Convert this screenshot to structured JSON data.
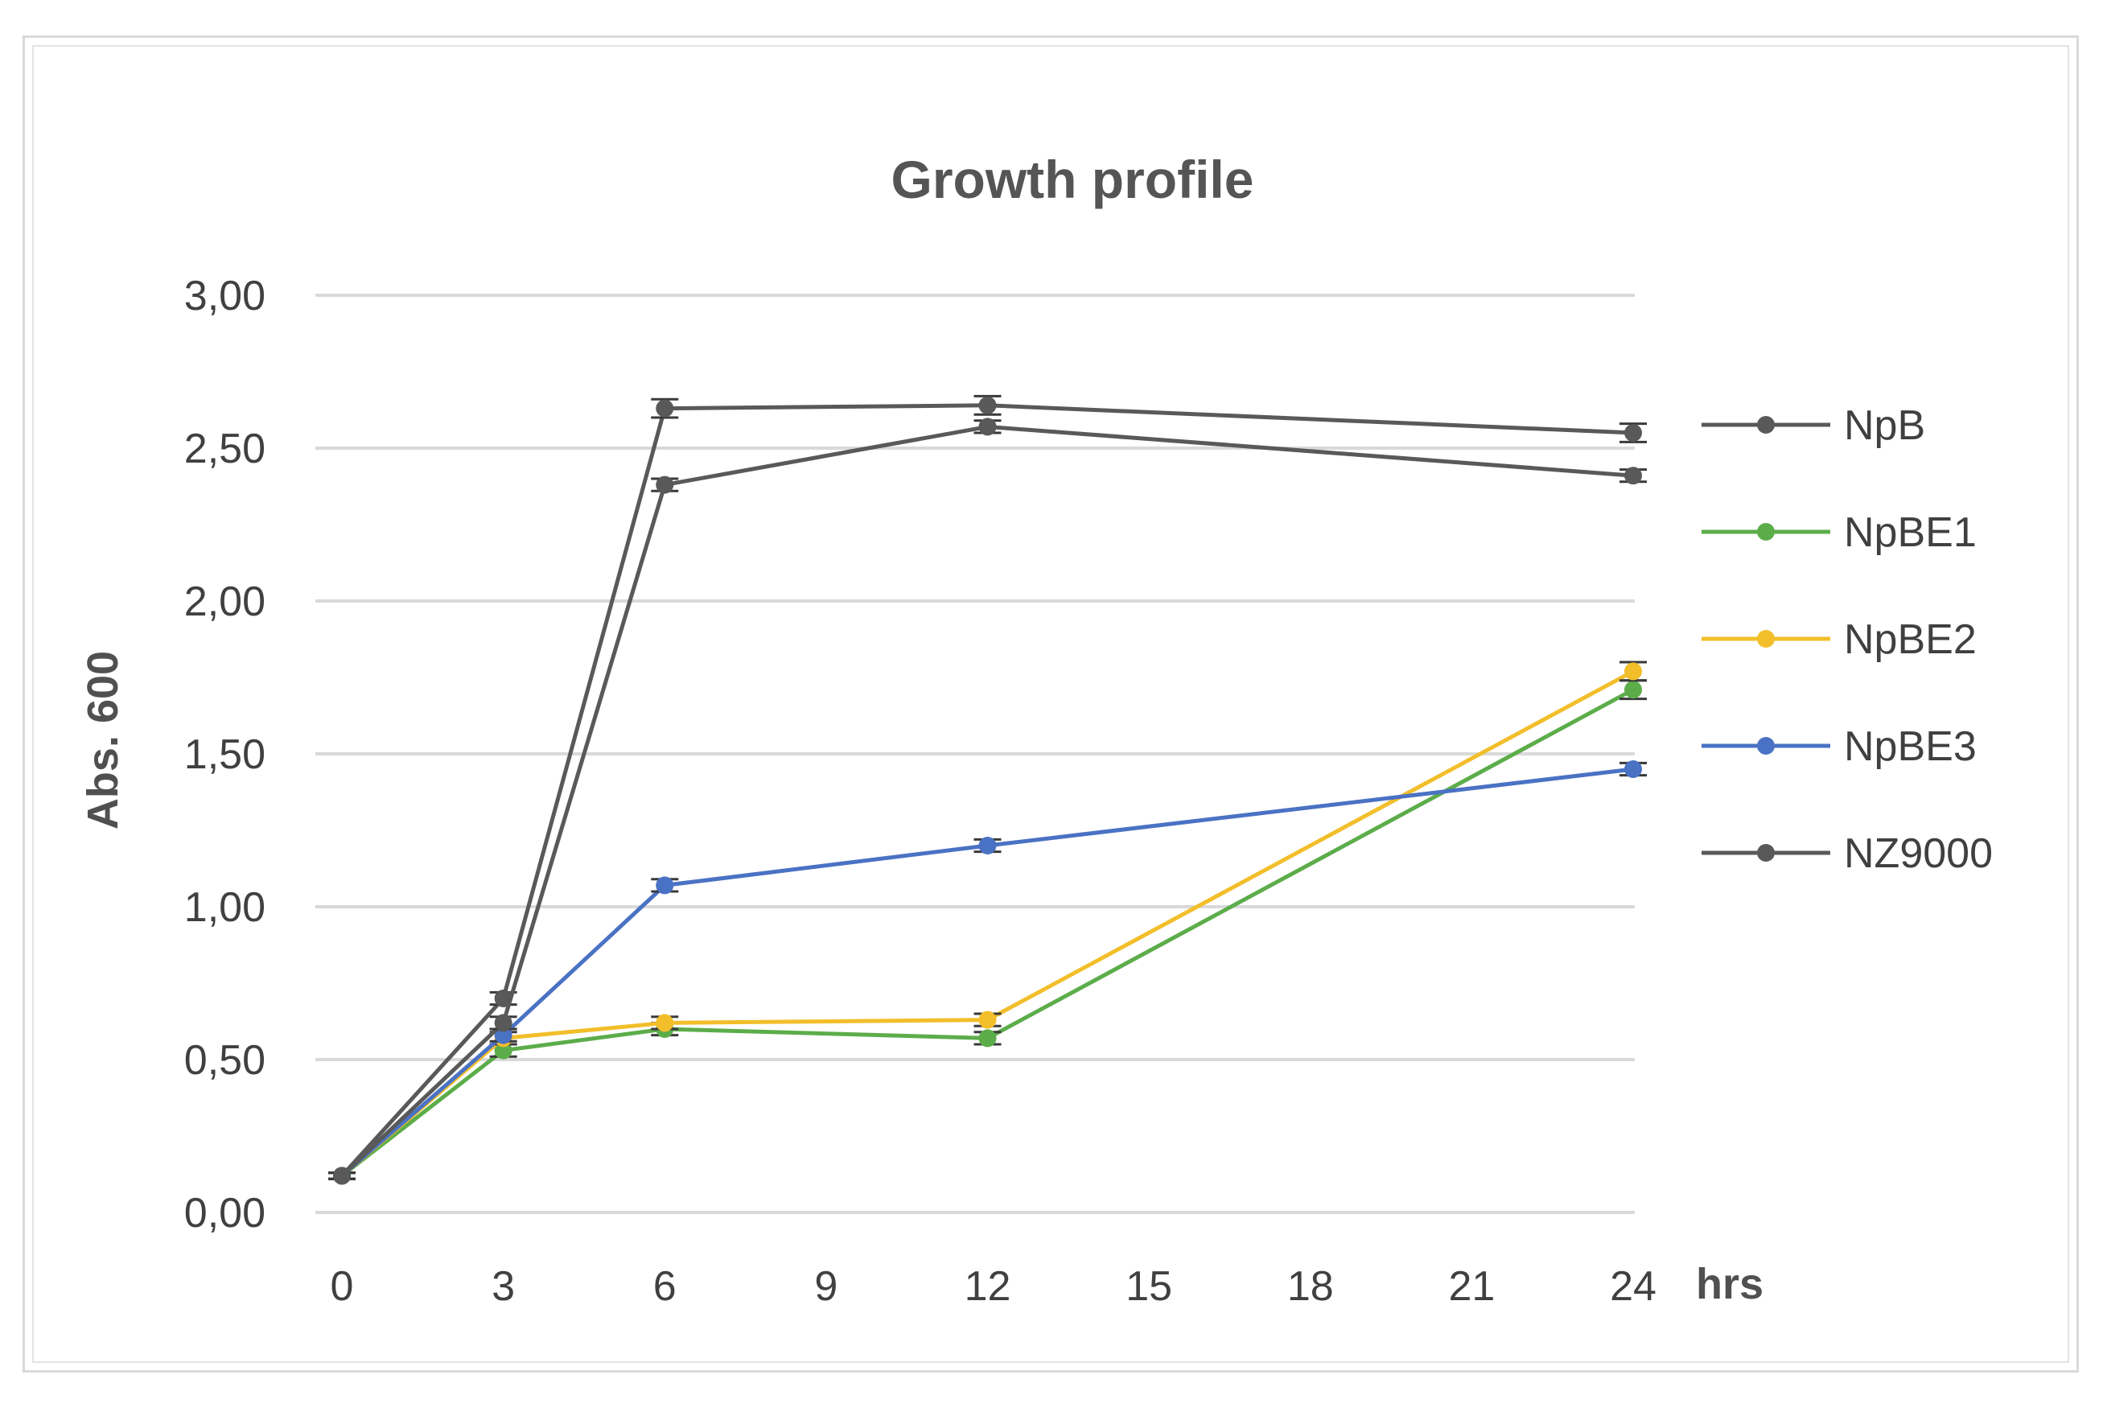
{
  "chart_data": {
    "type": "line",
    "title": "Growth profile",
    "xlabel": "hrs",
    "ylabel": "Abs. 600",
    "x_ticks": [
      "0",
      "3",
      "6",
      "9",
      "12",
      "15",
      "18",
      "21",
      "24"
    ],
    "y_ticks": [
      "0,00",
      "0,50",
      "1,00",
      "1,50",
      "2,00",
      "2,50",
      "3,00"
    ],
    "xlim": [
      0,
      24
    ],
    "ylim": [
      0,
      3
    ],
    "grid": "horizontal",
    "legend_position": "right",
    "error_bars": true,
    "series": [
      {
        "name": "NpB",
        "color": "#595959",
        "x": [
          0,
          3,
          6,
          12,
          24
        ],
        "y": [
          0.12,
          0.7,
          2.63,
          2.64,
          2.55
        ],
        "err": [
          0.01,
          0.02,
          0.03,
          0.03,
          0.03
        ]
      },
      {
        "name": "NpBE1",
        "color": "#5cad4a",
        "x": [
          0,
          3,
          6,
          12,
          24
        ],
        "y": [
          0.12,
          0.53,
          0.6,
          0.57,
          1.71
        ],
        "err": [
          0.01,
          0.02,
          0.02,
          0.02,
          0.03
        ]
      },
      {
        "name": "NpBE2",
        "color": "#f2be2a",
        "x": [
          0,
          3,
          6,
          12,
          24
        ],
        "y": [
          0.12,
          0.57,
          0.62,
          0.63,
          1.77
        ],
        "err": [
          0.01,
          0.02,
          0.02,
          0.02,
          0.03
        ]
      },
      {
        "name": "NpBE3",
        "color": "#4a72c4",
        "x": [
          0,
          3,
          6,
          12,
          24
        ],
        "y": [
          0.12,
          0.58,
          1.07,
          1.2,
          1.45
        ],
        "err": [
          0.01,
          0.02,
          0.02,
          0.02,
          0.02
        ]
      },
      {
        "name": "NZ9000",
        "color": "#595959",
        "x": [
          0,
          3,
          6,
          12,
          24
        ],
        "y": [
          0.12,
          0.62,
          2.38,
          2.57,
          2.41
        ],
        "err": [
          0.01,
          0.02,
          0.02,
          0.02,
          0.02
        ]
      }
    ]
  }
}
